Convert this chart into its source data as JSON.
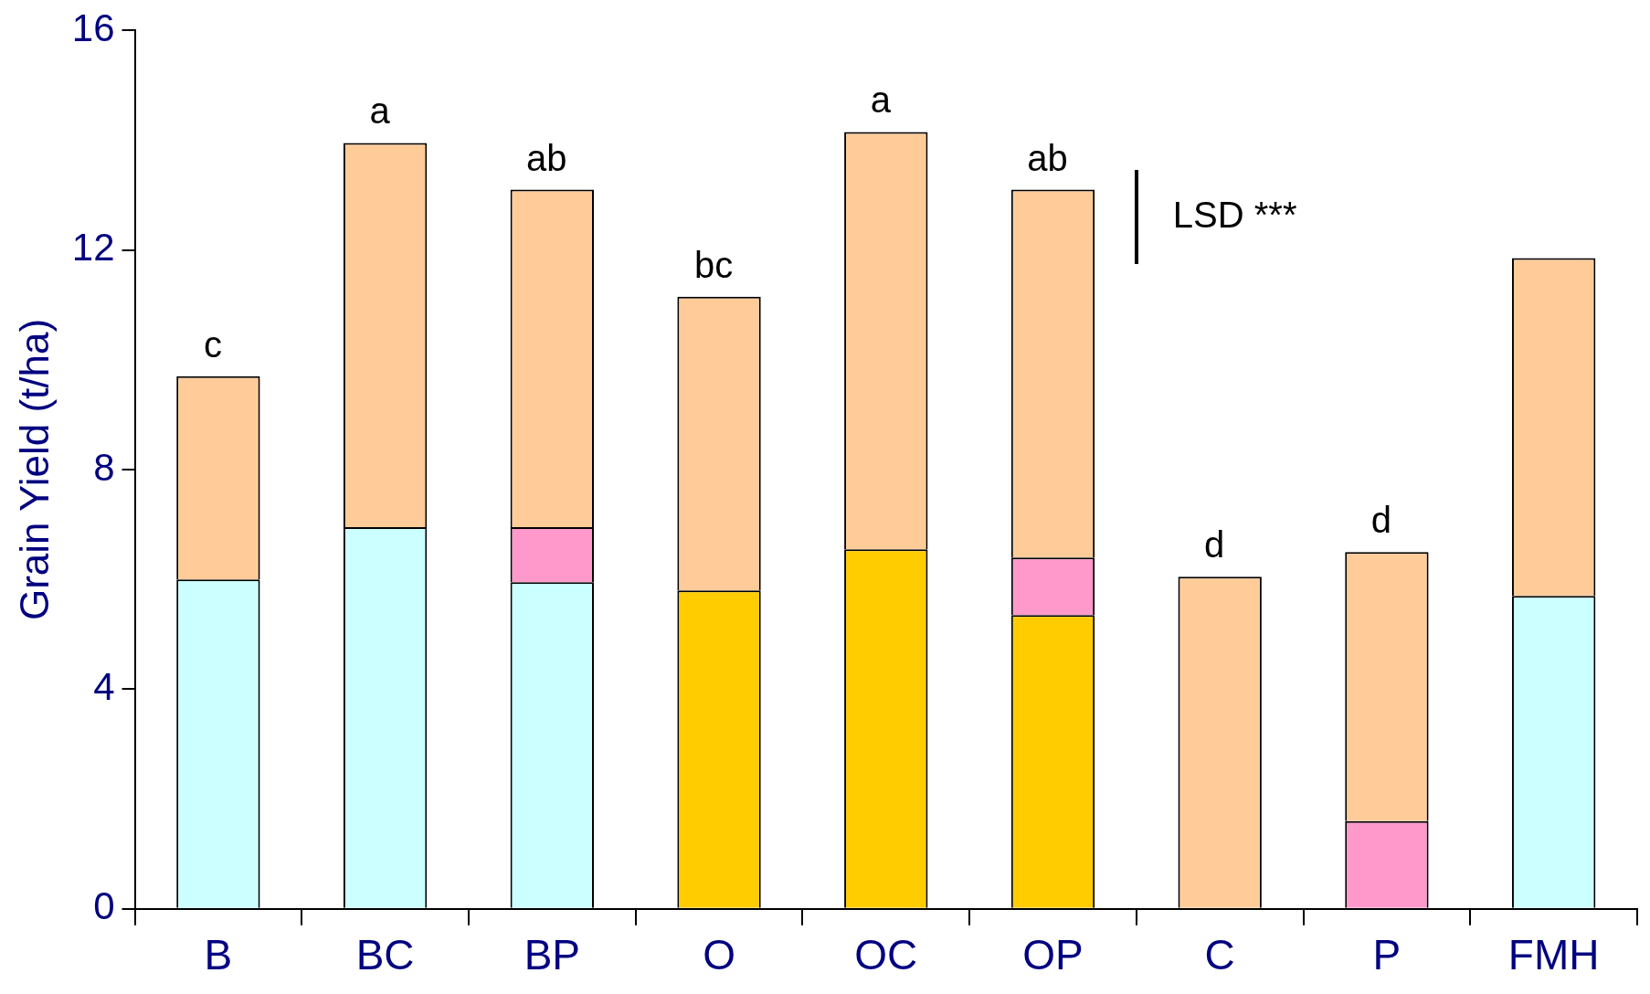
{
  "chart_data": {
    "type": "bar",
    "stacked": true,
    "ylabel": "Grain Yield (t/ha)",
    "categories": [
      "B",
      "BC",
      "BP",
      "O",
      "OC",
      "OP",
      "C",
      "P",
      "FMH"
    ],
    "series": [
      {
        "color": "#ccffff",
        "values": [
          6.0,
          6.95,
          5.95,
          null,
          null,
          null,
          null,
          null,
          5.7
        ]
      },
      {
        "color": "#ffcc00",
        "values": [
          null,
          null,
          null,
          5.8,
          6.55,
          5.35,
          null,
          null,
          null
        ]
      },
      {
        "color": "#ff99cc",
        "values": [
          null,
          null,
          1.0,
          null,
          null,
          1.05,
          null,
          1.6,
          null
        ]
      },
      {
        "color": "#ffcc99",
        "values": [
          3.7,
          7.0,
          6.15,
          5.35,
          7.6,
          6.7,
          6.05,
          4.9,
          6.15
        ]
      }
    ],
    "ylim": [
      0,
      16
    ],
    "yticks": [
      0,
      4,
      8,
      12,
      16
    ],
    "grid": false,
    "legend": false,
    "annotations": [
      {
        "text": "c",
        "x": "B",
        "y": 9.7
      },
      {
        "text": "a",
        "x": "BC",
        "y": 13.95
      },
      {
        "text": "ab",
        "x": "BP",
        "y": 13.1
      },
      {
        "text": "bc",
        "x": "O",
        "y": 11.15
      },
      {
        "text": "a",
        "x": "OC",
        "y": 14.15
      },
      {
        "text": "ab",
        "x": "OP",
        "y": 13.1
      },
      {
        "text": "d",
        "x": "C",
        "y": 6.05
      },
      {
        "text": "d",
        "x": "P",
        "y": 6.5
      },
      "LSD ***"
    ]
  }
}
